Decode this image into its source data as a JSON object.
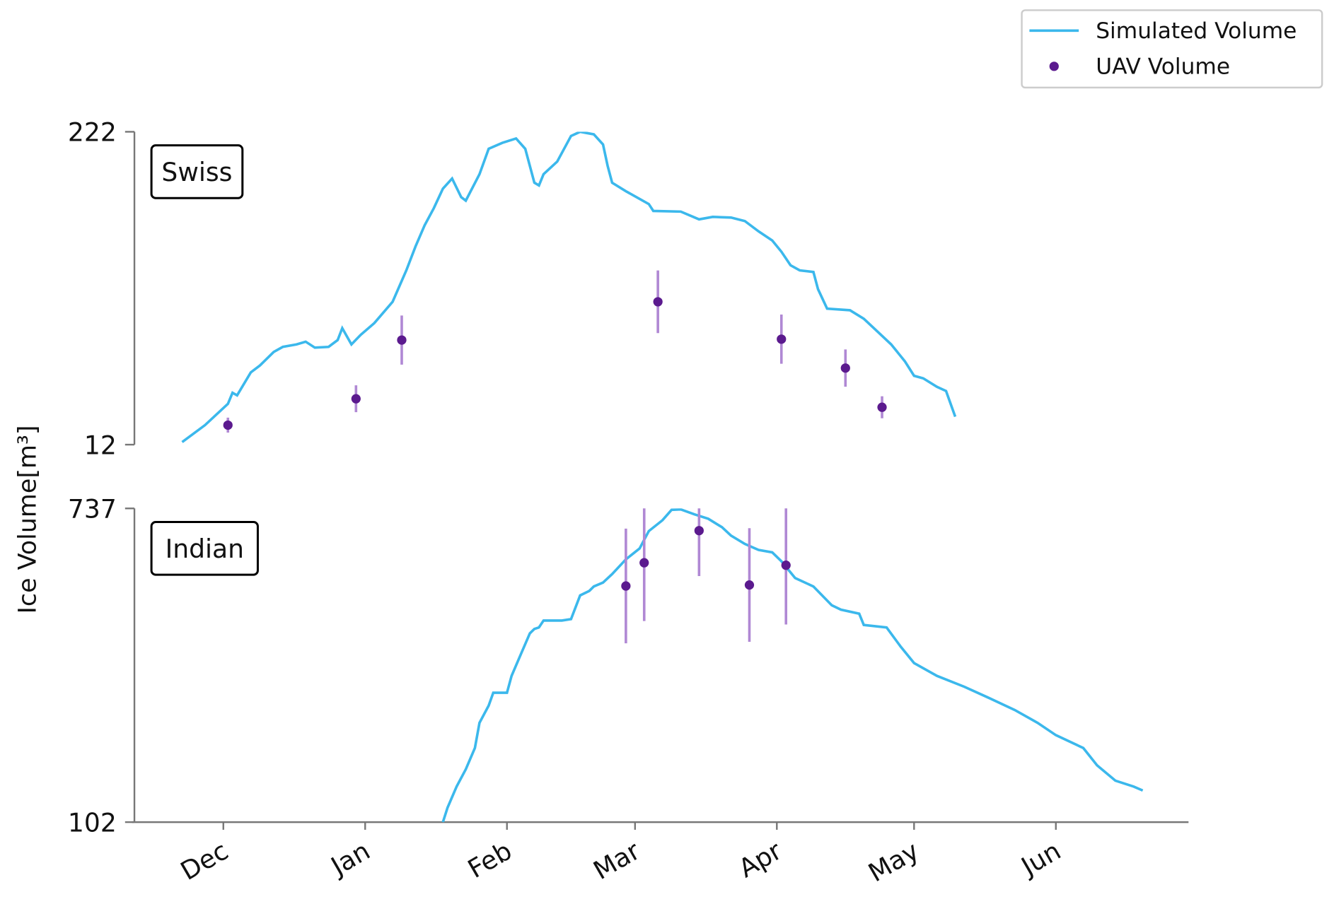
{
  "chart_data": [
    {
      "type": "line",
      "label": "Swiss",
      "ylabel": "Ice Volume[m³]",
      "xlim": [
        -20,
        211
      ],
      "ylim": [
        12,
        222
      ],
      "yticks": [
        12,
        222
      ],
      "legend": "upper right",
      "series": [
        {
          "name": "Simulated Volume",
          "color": "#3bb8ec",
          "x": [
            -9,
            -4,
            1,
            2,
            3,
            6,
            8,
            11,
            13,
            16,
            18,
            20,
            23,
            25,
            26,
            28,
            30,
            33,
            37,
            40,
            42,
            44,
            46,
            48,
            50,
            52,
            53,
            56,
            58,
            61,
            64,
            66,
            68,
            69,
            70,
            73,
            76,
            78,
            81,
            83,
            84,
            85,
            88,
            93,
            94,
            100,
            104,
            107,
            111,
            114,
            117,
            120,
            122,
            124,
            126,
            129,
            130,
            132,
            137,
            140,
            143,
            146,
            149,
            151,
            153,
            156,
            158,
            159,
            160
          ],
          "values": [
            13.7,
            25.1,
            39.4,
            46.8,
            45.1,
            60.5,
            65.1,
            74.2,
            77.6,
            79.3,
            81.1,
            77.1,
            77.6,
            82.2,
            90.2,
            79.3,
            85.6,
            93.6,
            107.9,
            129.0,
            145.0,
            159.2,
            170.7,
            183.8,
            190.6,
            178.1,
            175.8,
            193.5,
            210.6,
            214.6,
            217.5,
            210.6,
            187.8,
            186.0,
            193.5,
            202.0,
            219.2,
            222.0,
            220.3,
            213.5,
            199.2,
            187.8,
            182.1,
            173.5,
            168.9,
            168.4,
            163.2,
            164.9,
            164.4,
            162.1,
            155.2,
            149.0,
            141.5,
            132.4,
            129.0,
            127.9,
            116.4,
            103.3,
            102.2,
            96.5,
            87.9,
            79.3,
            67.9,
            58.2,
            56.5,
            50.8,
            48.0,
            39.4,
            30.8
          ]
        },
        {
          "name": "UAV Volume",
          "color": "#5b1a8e",
          "error_color": "#b088d4",
          "x": [
            1,
            29,
            39,
            95,
            122,
            136,
            144
          ],
          "values": [
            25.1,
            42.8,
            82.2,
            107.9,
            82.8,
            63.4,
            37.1
          ],
          "errors": [
            5,
            9,
            16.5,
            21,
            16.5,
            12.5,
            7.4
          ]
        }
      ]
    },
    {
      "type": "line",
      "label": "Indian",
      "xlim": [
        -20,
        211
      ],
      "ylim": [
        102,
        737
      ],
      "yticks": [
        102,
        737
      ],
      "xticks": [
        {
          "value": 0,
          "label": "Dec"
        },
        {
          "value": 31,
          "label": "Jan"
        },
        {
          "value": 62,
          "label": "Feb"
        },
        {
          "value": 90,
          "label": "Mar"
        },
        {
          "value": 121,
          "label": "Apr"
        },
        {
          "value": 151,
          "label": "May"
        },
        {
          "value": 182,
          "label": "Jun"
        }
      ],
      "series": [
        {
          "color": "#3bb8ec",
          "x": [
            48,
            49,
            51,
            53,
            55,
            56,
            58,
            59,
            62,
            63,
            65,
            67,
            68,
            69,
            70,
            74,
            76,
            78,
            80,
            81,
            83,
            85,
            88,
            91,
            93,
            96,
            98,
            100,
            103,
            106,
            109,
            111,
            114,
            117,
            120,
            122,
            125,
            129,
            133,
            135,
            139,
            140,
            145,
            148,
            151,
            156,
            162,
            167,
            173,
            178,
            182,
            188,
            191,
            195,
            199,
            201
          ],
          "values": [
            102,
            131,
            174,
            209,
            252,
            303,
            338,
            364,
            364,
            398,
            441,
            484,
            493,
            496,
            510,
            510,
            513,
            561,
            570,
            579,
            587,
            604,
            634,
            656,
            691,
            713,
            734,
            735,
            725,
            716,
            699,
            682,
            665,
            653,
            648,
            630,
            596,
            579,
            541,
            532,
            524,
            501,
            496,
            458,
            424,
            398,
            376,
            355,
            329,
            303,
            278,
            252,
            217,
            186,
            174,
            166
          ]
        },
        {
          "color": "#5b1a8e",
          "error_color": "#b088d4",
          "x": [
            88,
            92,
            104,
            115,
            123
          ],
          "values": [
            580,
            627,
            692,
            582,
            622
          ],
          "errors": [
            116,
            118,
            92,
            115,
            120
          ]
        }
      ]
    }
  ]
}
